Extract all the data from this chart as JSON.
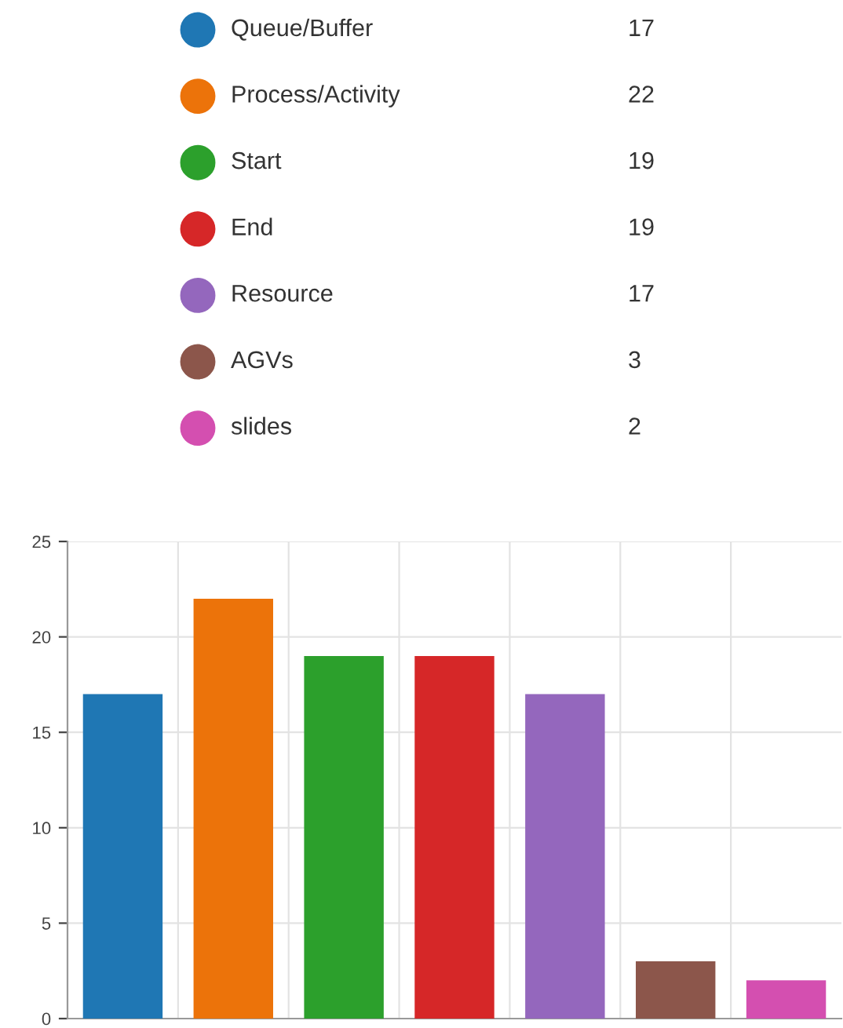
{
  "chart_data": [
    {
      "type": "other",
      "categories": [
        "Queue/Buffer",
        "Process/Activity",
        "Start",
        "End",
        "Resource",
        "AGVs",
        "slides"
      ],
      "values": [
        17,
        22,
        19,
        19,
        17,
        3,
        2
      ],
      "colors": [
        "#1f77b4",
        "#ec730a",
        "#2ca02c",
        "#d62728",
        "#9467bd",
        "#8c564b",
        "#d44fb0"
      ],
      "data_labels": true
    },
    {
      "type": "bar",
      "categories": [
        null,
        null,
        null,
        null,
        null,
        null,
        null
      ],
      "values": [
        17,
        22,
        19,
        19,
        17,
        3,
        2
      ],
      "colors": [
        "#1f77b4",
        "#ec730a",
        "#2ca02c",
        "#d62728",
        "#9467bd",
        "#8c564b",
        "#d44fb0"
      ],
      "ylim": [
        0,
        25
      ],
      "yticks": [
        0,
        5,
        10,
        15,
        20,
        25
      ],
      "grid": true
    }
  ]
}
